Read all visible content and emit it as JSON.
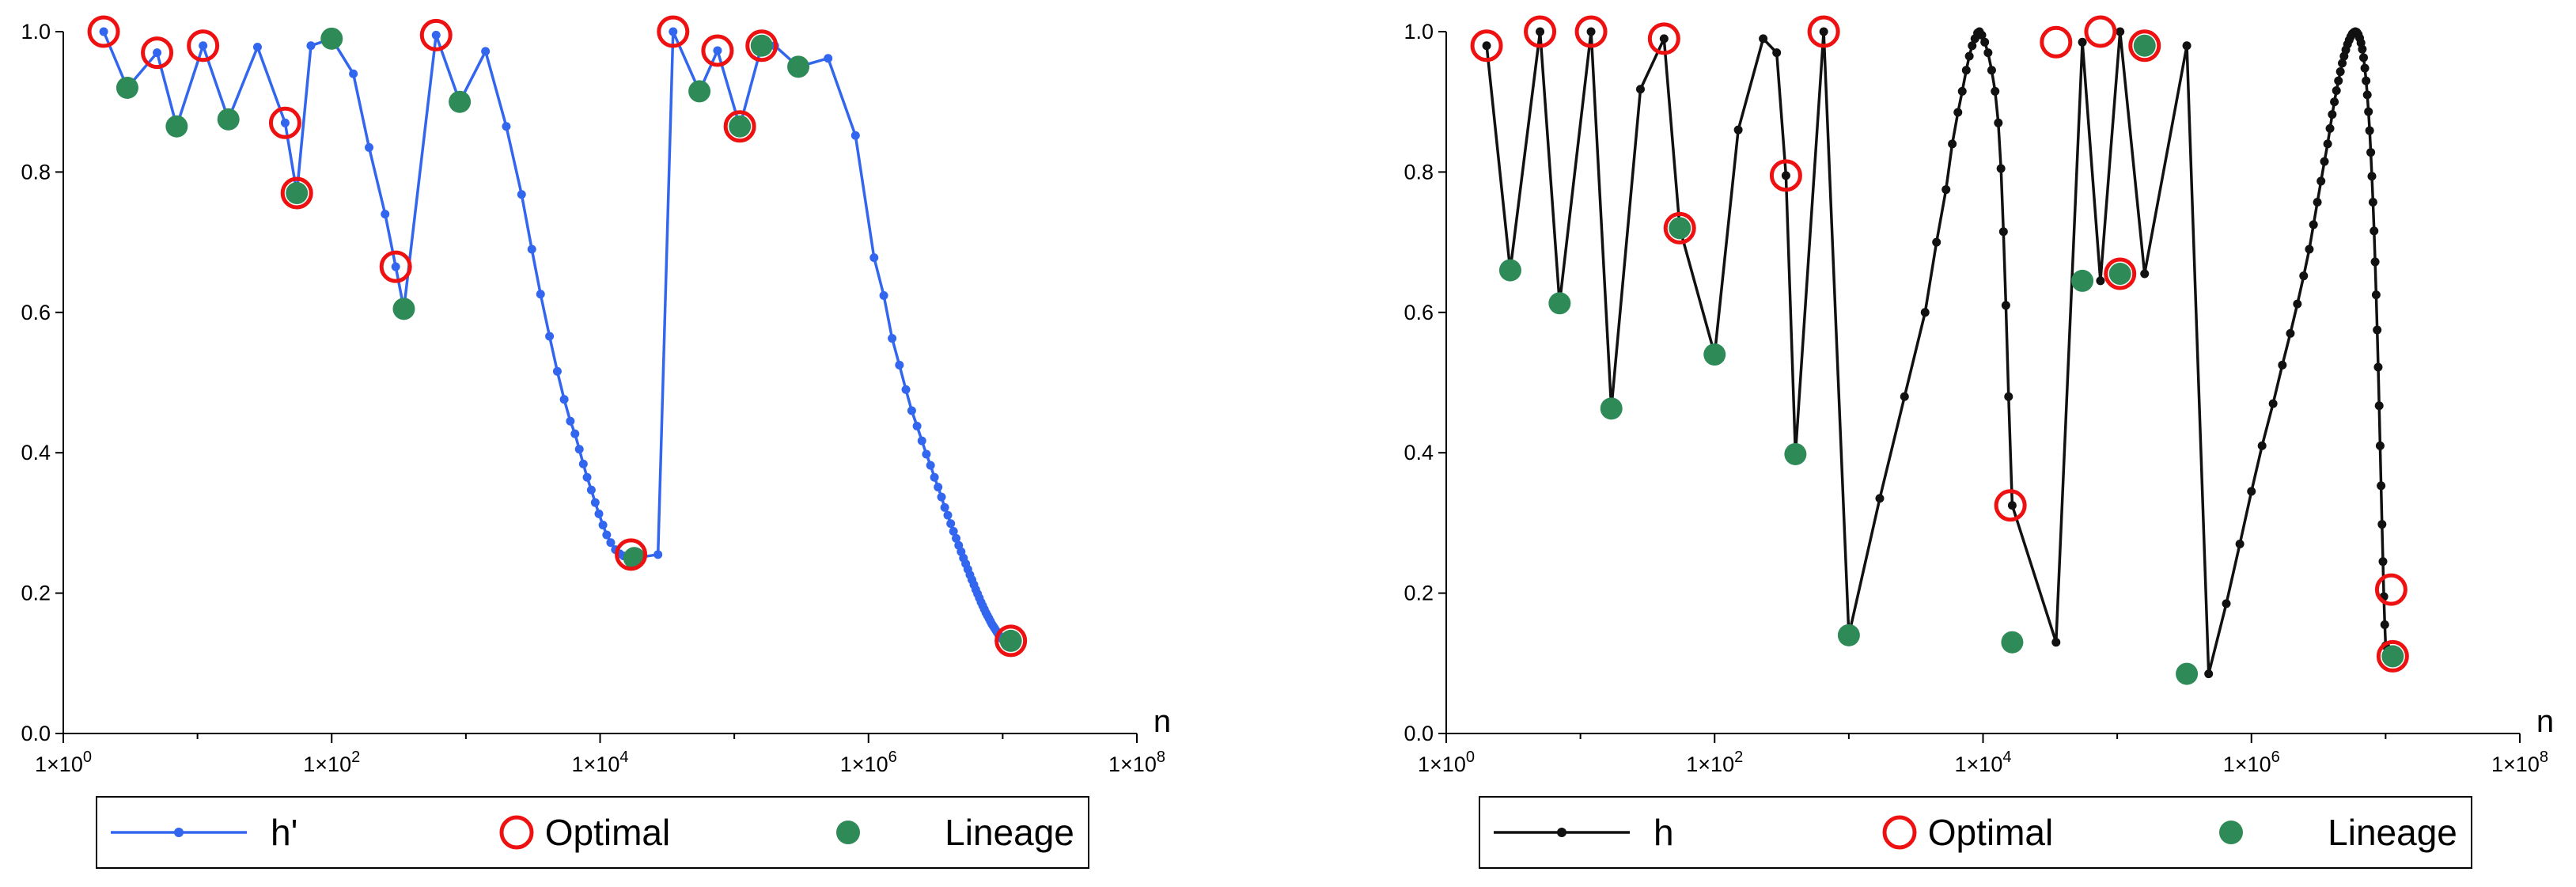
{
  "chart_data": [
    {
      "type": "line",
      "panel": "left",
      "xscale": "log10",
      "xlabel": "n",
      "ylabel": "",
      "xlim": [
        1,
        100000000
      ],
      "ylim": [
        0,
        1
      ],
      "x_ticks": [
        {
          "value": 1,
          "label": "1×10",
          "exp": "0"
        },
        {
          "value": 100,
          "label": "1×10",
          "exp": "2"
        },
        {
          "value": 10000,
          "label": "1×10",
          "exp": "4"
        },
        {
          "value": 1000000,
          "label": "1×10",
          "exp": "6"
        },
        {
          "value": 100000000,
          "label": "1×10",
          "exp": "8"
        }
      ],
      "y_ticks": [
        "0.0",
        "0.2",
        "0.4",
        "0.6",
        "0.8",
        "1.0"
      ],
      "grid": false,
      "legend_position": "bottom",
      "colors": {
        "line": "#3366ee",
        "optimal": "#ee1111",
        "lineage": "#2e8b57"
      },
      "series": [
        {
          "name": "h'",
          "style": "line-with-dots",
          "x": [
            2,
            3,
            5,
            7,
            11,
            17,
            28,
            45,
            55,
            70,
            100,
            145,
            190,
            250,
            300,
            345,
            600,
            900,
            1400,
            2000,
            2600,
            3100,
            3600,
            4200,
            4800,
            5400,
            6000,
            6500,
            7000,
            7500,
            8000,
            8600,
            9200,
            9800,
            10500,
            11200,
            12000,
            13000,
            14000,
            15000,
            16500,
            18000,
            27000,
            35000,
            55000,
            75000,
            110000,
            160000,
            200000,
            300000,
            500000,
            800000,
            1100000,
            1300000,
            1500000,
            1700000,
            1900000,
            2100000,
            2300000,
            2500000,
            2700000,
            2900000,
            3100000,
            3300000,
            3500000,
            3700000,
            3900000,
            4100000,
            4300000,
            4500000,
            4700000,
            4900000,
            5100000,
            5300000,
            5500000,
            5700000,
            5900000,
            6100000,
            6300000,
            6500000,
            6700000,
            6900000,
            7100000,
            7300000,
            7500000,
            7700000,
            7900000,
            8100000,
            8300000,
            8500000,
            8700000,
            8900000,
            9100000,
            9300000,
            9500000,
            9700000,
            9900000,
            10000000,
            10800000,
            11500000
          ],
          "y": [
            1.0,
            0.92,
            0.97,
            0.865,
            0.98,
            0.875,
            0.978,
            0.87,
            0.77,
            0.98,
            0.99,
            0.94,
            0.835,
            0.74,
            0.665,
            0.605,
            0.995,
            0.9,
            0.972,
            0.865,
            0.768,
            0.69,
            0.626,
            0.566,
            0.516,
            0.476,
            0.445,
            0.427,
            0.405,
            0.384,
            0.365,
            0.347,
            0.329,
            0.313,
            0.297,
            0.283,
            0.272,
            0.262,
            0.256,
            0.253,
            0.252,
            0.25,
            0.255,
            1.0,
            0.915,
            0.973,
            0.865,
            0.98,
            0.98,
            0.95,
            0.962,
            0.852,
            0.678,
            0.624,
            0.563,
            0.525,
            0.49,
            0.46,
            0.438,
            0.417,
            0.398,
            0.382,
            0.365,
            0.351,
            0.337,
            0.322,
            0.311,
            0.299,
            0.288,
            0.278,
            0.268,
            0.259,
            0.25,
            0.242,
            0.234,
            0.226,
            0.219,
            0.212,
            0.205,
            0.199,
            0.193,
            0.187,
            0.182,
            0.177,
            0.172,
            0.168,
            0.164,
            0.16,
            0.156,
            0.153,
            0.15,
            0.147,
            0.144,
            0.141,
            0.139,
            0.137,
            0.135,
            0.134,
            0.133,
            0.132
          ]
        },
        {
          "name": "Optimal",
          "style": "hollow-circle",
          "x": [
            2,
            5,
            11,
            45,
            55,
            300,
            600,
            17000,
            35000,
            75000,
            110000,
            160000,
            11500000
          ],
          "y": [
            1.0,
            0.97,
            0.98,
            0.87,
            0.77,
            0.665,
            0.995,
            0.255,
            1.0,
            0.973,
            0.865,
            0.98,
            0.132
          ]
        },
        {
          "name": "Lineage",
          "style": "filled-circle",
          "x": [
            3,
            7,
            17,
            55,
            100,
            345,
            900,
            18000,
            55000,
            110000,
            160000,
            300000,
            11500000
          ],
          "y": [
            0.92,
            0.865,
            0.875,
            0.77,
            0.99,
            0.605,
            0.9,
            0.25,
            0.915,
            0.865,
            0.98,
            0.95,
            0.132
          ]
        }
      ],
      "legend": [
        "h'",
        "Optimal",
        "Lineage"
      ]
    },
    {
      "type": "line",
      "panel": "right",
      "xscale": "log10",
      "xlabel": "n",
      "ylabel": "",
      "xlim": [
        1,
        100000000
      ],
      "ylim": [
        0,
        1
      ],
      "x_ticks": [
        {
          "value": 1,
          "label": "1×10",
          "exp": "0"
        },
        {
          "value": 100,
          "label": "1×10",
          "exp": "2"
        },
        {
          "value": 10000,
          "label": "1×10",
          "exp": "4"
        },
        {
          "value": 1000000,
          "label": "1×10",
          "exp": "6"
        },
        {
          "value": 100000000,
          "label": "1×10",
          "exp": "8"
        }
      ],
      "y_ticks": [
        "0.0",
        "0.2",
        "0.4",
        "0.6",
        "0.8",
        "1.0"
      ],
      "grid": false,
      "legend_position": "bottom",
      "colors": {
        "line": "#111111",
        "optimal": "#ee1111",
        "lineage": "#2e8b57"
      },
      "series": [
        {
          "name": "h",
          "style": "line-with-dots",
          "x": [
            2,
            3,
            5,
            7,
            12,
            17,
            28,
            42,
            55,
            100,
            150,
            230,
            290,
            340,
            400,
            650,
            1000,
            1700,
            2600,
            3700,
            4500,
            5300,
            5900,
            6500,
            7000,
            7500,
            7900,
            8300,
            8700,
            9100,
            9400,
            9800,
            10300,
            10900,
            11600,
            12300,
            13000,
            13600,
            14200,
            14800,
            15500,
            16500,
            35000,
            55000,
            75000,
            105000,
            160000,
            330000,
            480000,
            650000,
            820000,
            1000000,
            1200000,
            1450000,
            1700000,
            1950000,
            2200000,
            2450000,
            2700000,
            2900000,
            3100000,
            3300000,
            3500000,
            3700000,
            3850000,
            4000000,
            4150000,
            4300000,
            4450000,
            4600000,
            4750000,
            4900000,
            5050000,
            5200000,
            5350000,
            5500000,
            5650000,
            5800000,
            5950000,
            6100000,
            6250000,
            6400000,
            6550000,
            6700000,
            6850000,
            7000000,
            7150000,
            7300000,
            7450000,
            7600000,
            7750000,
            7900000,
            8050000,
            8200000,
            8350000,
            8500000,
            8650000,
            8800000,
            8950000,
            9100000,
            9250000,
            9400000,
            9550000,
            9700000,
            9850000,
            10000000,
            10300000,
            10600000,
            10900000,
            11100000,
            11300000
          ],
          "y": [
            0.98,
            0.66,
            1.0,
            0.613,
            1.0,
            0.463,
            0.918,
            0.99,
            0.72,
            0.54,
            0.86,
            0.99,
            0.97,
            0.795,
            0.398,
            1.0,
            0.14,
            0.335,
            0.48,
            0.6,
            0.7,
            0.775,
            0.84,
            0.885,
            0.915,
            0.945,
            0.965,
            0.98,
            0.99,
            0.998,
            1.0,
            0.995,
            0.985,
            0.97,
            0.945,
            0.915,
            0.87,
            0.805,
            0.715,
            0.61,
            0.48,
            0.325,
            0.13,
            0.985,
            0.645,
            1.0,
            0.655,
            0.98,
            0.085,
            0.185,
            0.27,
            0.345,
            0.41,
            0.47,
            0.525,
            0.57,
            0.612,
            0.652,
            0.69,
            0.725,
            0.757,
            0.787,
            0.815,
            0.84,
            0.862,
            0.882,
            0.9,
            0.916,
            0.93,
            0.943,
            0.955,
            0.965,
            0.974,
            0.982,
            0.988,
            0.993,
            0.997,
            0.999,
            1.0,
            0.999,
            0.996,
            0.991,
            0.984,
            0.975,
            0.963,
            0.948,
            0.93,
            0.91,
            0.886,
            0.859,
            0.828,
            0.794,
            0.757,
            0.716,
            0.672,
            0.625,
            0.575,
            0.522,
            0.467,
            0.41,
            0.353,
            0.298,
            0.245,
            0.195,
            0.155,
            0.125,
            0.115,
            0.112,
            0.111,
            0.11,
            0.11
          ]
        },
        {
          "name": "Optimal",
          "style": "hollow-circle",
          "x": [
            2,
            5,
            12,
            42,
            55,
            340,
            650,
            16000,
            35000,
            75000,
            105000,
            160000,
            11000000,
            11300000
          ],
          "y": [
            0.98,
            1.0,
            1.0,
            0.99,
            0.72,
            0.795,
            1.0,
            0.325,
            0.985,
            1.0,
            0.655,
            0.98,
            0.205,
            0.11
          ]
        },
        {
          "name": "Lineage",
          "style": "filled-circle",
          "x": [
            3,
            7,
            17,
            55,
            100,
            400,
            1000,
            16500,
            55000,
            105000,
            160000,
            330000,
            11300000
          ],
          "y": [
            0.66,
            0.613,
            0.463,
            0.72,
            0.54,
            0.398,
            0.14,
            0.13,
            0.645,
            0.655,
            0.98,
            0.085,
            0.11
          ]
        }
      ],
      "legend": [
        "h",
        "Optimal",
        "Lineage"
      ]
    }
  ]
}
